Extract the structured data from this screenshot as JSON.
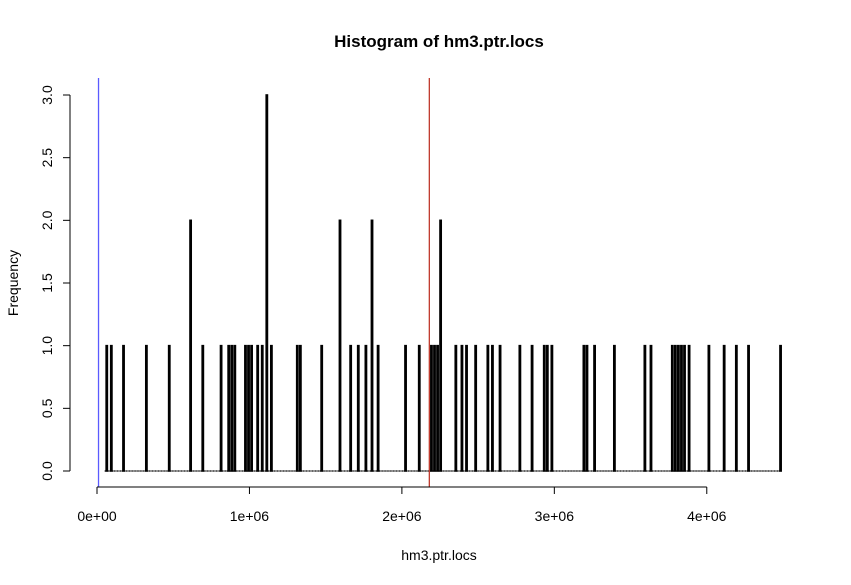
{
  "chart_data": {
    "type": "histogram",
    "title": "Histogram of hm3.ptr.locs",
    "xlabel": "hm3.ptr.locs",
    "ylabel": "Frequency",
    "xlim": [
      0,
      4500000
    ],
    "ylim": [
      0,
      3.0
    ],
    "x_ticks": [
      0,
      1000000,
      2000000,
      3000000,
      4000000
    ],
    "x_tick_labels": [
      "0e+00",
      "1e+06",
      "2e+06",
      "3e+06",
      "4e+06"
    ],
    "y_ticks": [
      0.0,
      0.5,
      1.0,
      1.5,
      2.0,
      2.5,
      3.0
    ],
    "y_tick_labels": [
      "0.0",
      "0.5",
      "1.0",
      "1.5",
      "2.0",
      "2.5",
      "3.0"
    ],
    "x_range": [
      50000,
      4480000
    ],
    "bin_width": 10000,
    "nonzero_bins": [
      {
        "x": 60000,
        "count": 1
      },
      {
        "x": 90000,
        "count": 1
      },
      {
        "x": 170000,
        "count": 1
      },
      {
        "x": 320000,
        "count": 1
      },
      {
        "x": 470000,
        "count": 1
      },
      {
        "x": 610000,
        "count": 2
      },
      {
        "x": 690000,
        "count": 1
      },
      {
        "x": 810000,
        "count": 1
      },
      {
        "x": 860000,
        "count": 1
      },
      {
        "x": 880000,
        "count": 1
      },
      {
        "x": 900000,
        "count": 1
      },
      {
        "x": 970000,
        "count": 1
      },
      {
        "x": 990000,
        "count": 1
      },
      {
        "x": 1010000,
        "count": 1
      },
      {
        "x": 1050000,
        "count": 1
      },
      {
        "x": 1080000,
        "count": 1
      },
      {
        "x": 1110000,
        "count": 3
      },
      {
        "x": 1140000,
        "count": 1
      },
      {
        "x": 1310000,
        "count": 1
      },
      {
        "x": 1330000,
        "count": 1
      },
      {
        "x": 1470000,
        "count": 1
      },
      {
        "x": 1590000,
        "count": 2
      },
      {
        "x": 1660000,
        "count": 1
      },
      {
        "x": 1710000,
        "count": 1
      },
      {
        "x": 1760000,
        "count": 1
      },
      {
        "x": 1800000,
        "count": 2
      },
      {
        "x": 1840000,
        "count": 1
      },
      {
        "x": 2020000,
        "count": 1
      },
      {
        "x": 2110000,
        "count": 1
      },
      {
        "x": 2190000,
        "count": 1
      },
      {
        "x": 2210000,
        "count": 1
      },
      {
        "x": 2230000,
        "count": 1
      },
      {
        "x": 2250000,
        "count": 2
      },
      {
        "x": 2350000,
        "count": 1
      },
      {
        "x": 2390000,
        "count": 1
      },
      {
        "x": 2420000,
        "count": 1
      },
      {
        "x": 2480000,
        "count": 1
      },
      {
        "x": 2560000,
        "count": 1
      },
      {
        "x": 2590000,
        "count": 1
      },
      {
        "x": 2640000,
        "count": 1
      },
      {
        "x": 2770000,
        "count": 1
      },
      {
        "x": 2850000,
        "count": 1
      },
      {
        "x": 2930000,
        "count": 1
      },
      {
        "x": 2950000,
        "count": 1
      },
      {
        "x": 2980000,
        "count": 1
      },
      {
        "x": 3190000,
        "count": 1
      },
      {
        "x": 3210000,
        "count": 1
      },
      {
        "x": 3260000,
        "count": 1
      },
      {
        "x": 3390000,
        "count": 1
      },
      {
        "x": 3590000,
        "count": 1
      },
      {
        "x": 3630000,
        "count": 1
      },
      {
        "x": 3770000,
        "count": 1
      },
      {
        "x": 3790000,
        "count": 1
      },
      {
        "x": 3810000,
        "count": 1
      },
      {
        "x": 3830000,
        "count": 1
      },
      {
        "x": 3850000,
        "count": 1
      },
      {
        "x": 3880000,
        "count": 1
      },
      {
        "x": 4010000,
        "count": 1
      },
      {
        "x": 4110000,
        "count": 1
      },
      {
        "x": 4190000,
        "count": 1
      },
      {
        "x": 4270000,
        "count": 1
      },
      {
        "x": 4480000,
        "count": 1
      }
    ],
    "vertical_lines": [
      {
        "x": 10000,
        "color": "#5b5bff"
      },
      {
        "x": 2180000,
        "color": "#c0392b"
      }
    ],
    "grid": false,
    "colors": {
      "bars": "#000000",
      "axes": "#000000"
    }
  }
}
